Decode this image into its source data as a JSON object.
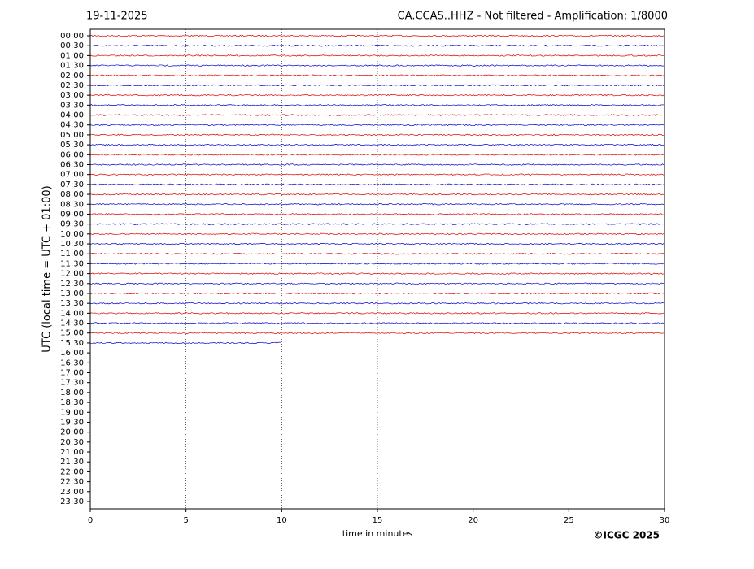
{
  "chart_data": {
    "type": "helicorder",
    "date": "19-11-2025",
    "title": "CA.CCAS..HHZ - Not filtered - Amplification: 1/8000",
    "y_label": "UTC (local time = UTC + 01:00)",
    "x_label": "time in minutes",
    "credit": "©ICGC 2025",
    "categories": [
      "00:00",
      "00:30",
      "01:00",
      "01:30",
      "02:00",
      "02:30",
      "03:00",
      "03:30",
      "04:00",
      "04:30",
      "05:00",
      "05:30",
      "06:00",
      "06:30",
      "07:00",
      "07:30",
      "08:00",
      "08:30",
      "09:00",
      "09:30",
      "10:00",
      "10:30",
      "11:00",
      "11:30",
      "12:00",
      "12:30",
      "13:00",
      "13:30",
      "14:00",
      "14:30",
      "15:00",
      "15:30",
      "16:00",
      "16:30",
      "17:00",
      "17:30",
      "18:00",
      "18:30",
      "19:00",
      "19:30",
      "20:00",
      "20:30",
      "21:00",
      "21:30",
      "22:00",
      "22:30",
      "23:00",
      "23:30"
    ],
    "values": [
      30,
      30,
      30,
      30,
      30,
      30,
      30,
      30,
      30,
      30,
      30,
      30,
      30,
      30,
      30,
      30,
      30,
      30,
      30,
      30,
      30,
      30,
      30,
      30,
      30,
      30,
      30,
      30,
      30,
      30,
      30,
      10,
      null,
      null,
      null,
      null,
      null,
      null,
      null,
      null,
      null,
      null,
      null,
      null,
      null,
      null,
      null,
      null
    ],
    "colors": [
      "#dd0000",
      "#0000cc"
    ],
    "xlim": [
      0,
      30
    ],
    "xticks": [
      0,
      5,
      10,
      15,
      20,
      25,
      30
    ],
    "grid": true
  }
}
